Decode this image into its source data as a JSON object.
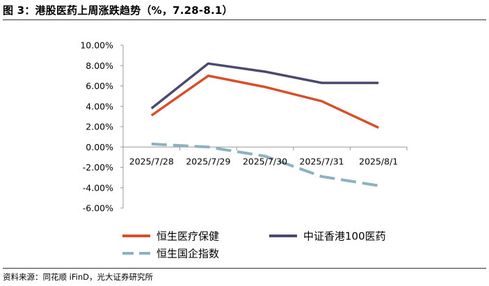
{
  "figure": {
    "title": "图 3：港股医药上周涨跌趋势（%，7.28-8.1）",
    "source": "资料来源：同花顺 iFinD，光大证券研究所"
  },
  "chart_data": {
    "type": "line",
    "x": [
      "2025/7/28",
      "2025/7/29",
      "2025/7/30",
      "2025/7/31",
      "2025/8/1"
    ],
    "ylim": [
      -6.0,
      10.0
    ],
    "ytick_step": 2.0,
    "ytick_labels": [
      "10.00%",
      "8.00%",
      "6.00%",
      "4.00%",
      "2.00%",
      "0.00%",
      "-2.00%",
      "-4.00%",
      "-6.00%"
    ],
    "grid": false,
    "legend_position": "bottom",
    "series": [
      {
        "name": "恒生医疗保健",
        "values": [
          3.1,
          7.0,
          5.9,
          4.5,
          1.9
        ],
        "color": "#d7502c",
        "style": "solid"
      },
      {
        "name": "中证香港100医药",
        "values": [
          3.8,
          8.2,
          7.4,
          6.3,
          6.3
        ],
        "color": "#4b4a6e",
        "style": "solid"
      },
      {
        "name": "恒生国企指数",
        "values": [
          0.3,
          0.0,
          -0.9,
          -2.9,
          -3.8
        ],
        "color": "#8cb1bf",
        "style": "dashed"
      }
    ]
  }
}
